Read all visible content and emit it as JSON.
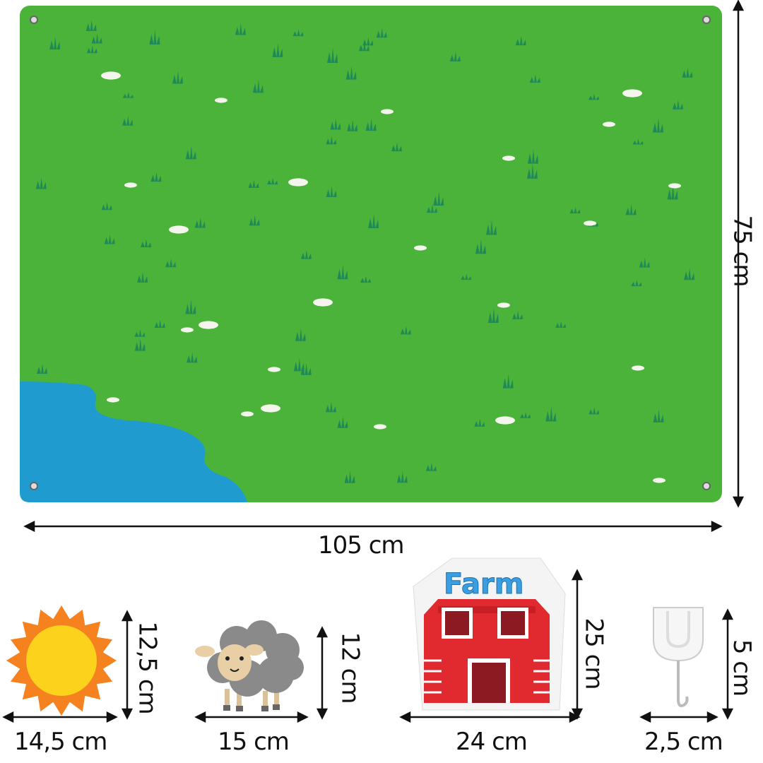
{
  "mat": {
    "width_label": "105 cm",
    "height_label": "75 cm",
    "grass_color": "#4cb33a",
    "pond_color": "#1f9bd0"
  },
  "pieces": [
    {
      "name": "sun",
      "width_label": "14,5 cm",
      "height_label": "12,5 cm"
    },
    {
      "name": "sheep",
      "width_label": "15 cm",
      "height_label": "12 cm"
    },
    {
      "name": "barn",
      "width_label": "24 cm",
      "height_label": "25 cm",
      "sign_text": "Farm"
    },
    {
      "name": "hook",
      "width_label": "2,5 cm",
      "height_label": "5 cm"
    }
  ]
}
